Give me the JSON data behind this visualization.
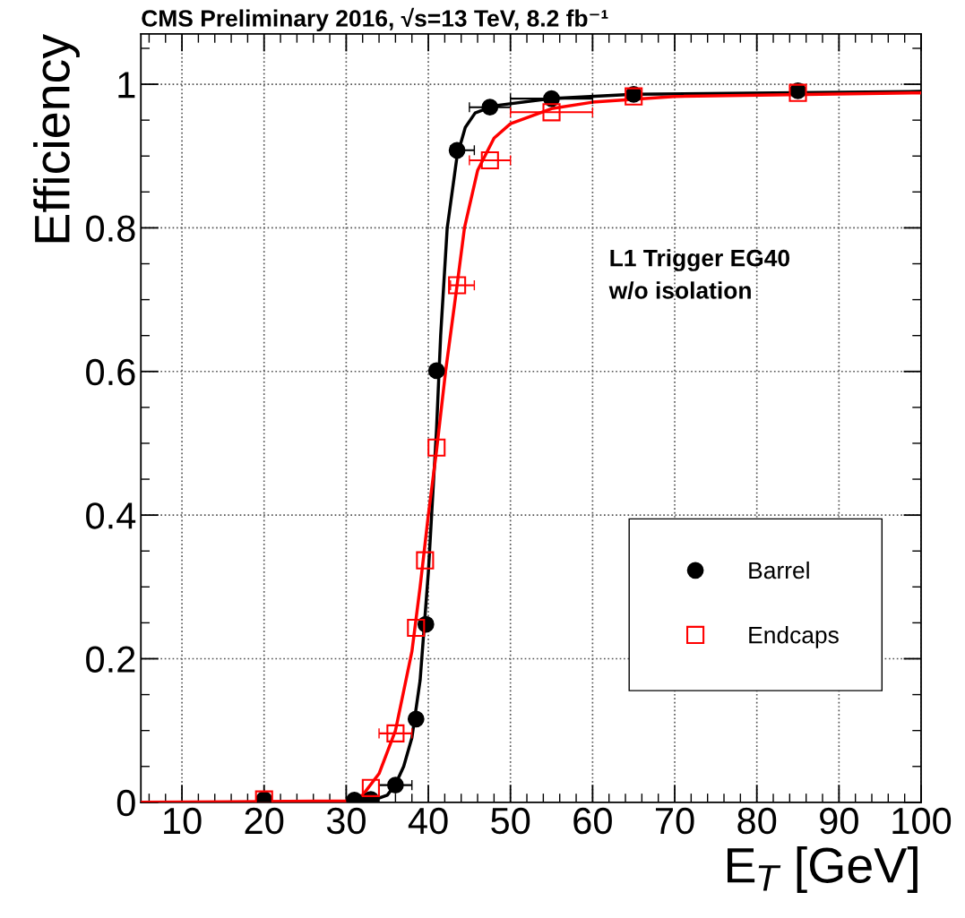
{
  "chart_data": {
    "type": "scatter",
    "title": "CMS Preliminary 2016, √s=13 TeV, 8.2 fb⁻¹",
    "xlabel": "E$_{T}$ [GeV]",
    "ylabel": "Efficiency",
    "annotations": [
      "L1 Trigger EG40\nw/o isolation"
    ],
    "xlim": [
      5,
      100
    ],
    "xticks": [
      10,
      20,
      30,
      40,
      50,
      60,
      70,
      80,
      90,
      100
    ],
    "ylim": [
      0,
      1.07
    ],
    "yticks": [
      0,
      0.2,
      0.4,
      0.6,
      0.8,
      1
    ],
    "grid": true,
    "legend": "bottom right",
    "series": [
      {
        "type": "line",
        "color": "#000000",
        "marker": "none",
        "x": [
          5,
          30,
          33,
          35,
          36,
          37,
          38,
          39,
          40,
          41,
          41.5,
          42.3,
          43.5,
          44.5,
          45.7,
          48,
          55,
          65,
          100
        ],
        "values": [
          0,
          0,
          0.002,
          0.01,
          0.025,
          0.05,
          0.09,
          0.17,
          0.32,
          0.52,
          0.65,
          0.8,
          0.9,
          0.94,
          0.96,
          0.97,
          0.98,
          0.986,
          0.99
        ]
      },
      {
        "type": "line",
        "color": "#ff0000",
        "marker": "none",
        "x": [
          5,
          30,
          32,
          34,
          36,
          38,
          39,
          40,
          41,
          42.1,
          43.5,
          44.4,
          46,
          48,
          50,
          55,
          60,
          70,
          100
        ],
        "values": [
          0,
          0.002,
          0.01,
          0.04,
          0.1,
          0.21,
          0.3,
          0.4,
          0.49,
          0.6,
          0.72,
          0.8,
          0.88,
          0.925,
          0.945,
          0.966,
          0.975,
          0.983,
          0.988
        ]
      },
      {
        "name": "Barrel",
        "color": "#000000",
        "marker": "circle",
        "x": [
          20,
          31,
          33,
          36,
          38.5,
          39.7,
          41,
          43.5,
          47.5,
          55,
          65,
          85
        ],
        "values": [
          0.004,
          0.003,
          0.004,
          0.024,
          0.116,
          0.248,
          0.601,
          0.908,
          0.968,
          0.98,
          0.986,
          0.991
        ],
        "xerrors": [
          null,
          null,
          null,
          [
            34,
            38
          ],
          null,
          null,
          null,
          [
            42.7,
            45.6
          ],
          [
            45,
            50
          ],
          [
            50,
            60
          ],
          null,
          null
        ]
      },
      {
        "name": "Endcaps",
        "color": "#ff0000",
        "marker": "square",
        "x": [
          20,
          33,
          36,
          38.5,
          39.6,
          41,
          43.5,
          47.5,
          55,
          65,
          85
        ],
        "values": [
          0.004,
          0.02,
          0.096,
          0.243,
          0.337,
          0.494,
          0.72,
          0.894,
          0.961,
          0.983,
          0.988
        ],
        "xerrors": [
          null,
          null,
          [
            34,
            38
          ],
          null,
          null,
          null,
          [
            42.7,
            45.6
          ],
          [
            45,
            50
          ],
          [
            50,
            60
          ],
          null,
          null
        ]
      }
    ]
  }
}
